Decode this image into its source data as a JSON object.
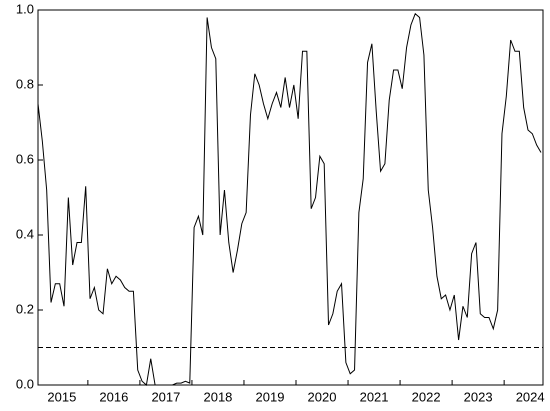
{
  "chart_data": {
    "type": "line",
    "categories": [
      null,
      null,
      null,
      null,
      null,
      null,
      "2015",
      null,
      null,
      null,
      null,
      null,
      null,
      null,
      null,
      null,
      null,
      null,
      "2016",
      null,
      null,
      null,
      null,
      null,
      null,
      null,
      null,
      null,
      null,
      null,
      "2017",
      null,
      null,
      null,
      null,
      null,
      null,
      null,
      null,
      null,
      null,
      null,
      "2018",
      null,
      null,
      null,
      null,
      null,
      null,
      null,
      null,
      null,
      null,
      null,
      "2019",
      null,
      null,
      null,
      null,
      null,
      null,
      null,
      null,
      null,
      null,
      null,
      "2020",
      null,
      null,
      null,
      null,
      null,
      null,
      null,
      null,
      null,
      null,
      null,
      "2021",
      null,
      null,
      null,
      null,
      null,
      null,
      null,
      null,
      null,
      null,
      null,
      "2022",
      null,
      null,
      null,
      null,
      null,
      null,
      null,
      null,
      null,
      null,
      null,
      "2023",
      null,
      null,
      null,
      null,
      null,
      null,
      null,
      null,
      null,
      null,
      null,
      "2024",
      null,
      null
    ],
    "values": [
      0.75,
      0.65,
      0.52,
      0.22,
      0.27,
      0.27,
      0.21,
      0.5,
      0.32,
      0.38,
      0.38,
      0.53,
      0.23,
      0.26,
      0.2,
      0.19,
      0.31,
      0.27,
      0.29,
      0.28,
      0.26,
      0.25,
      0.25,
      0.04,
      0.01,
      0.0,
      0.07,
      0.0,
      0.0,
      0.0,
      0.0,
      0.0,
      0.005,
      0.005,
      0.01,
      0.005,
      0.42,
      0.45,
      0.4,
      0.98,
      0.9,
      0.87,
      0.4,
      0.52,
      0.38,
      0.3,
      0.36,
      0.43,
      0.46,
      0.72,
      0.83,
      0.8,
      0.75,
      0.71,
      0.75,
      0.78,
      0.74,
      0.82,
      0.74,
      0.8,
      0.71,
      0.89,
      0.89,
      0.47,
      0.5,
      0.61,
      0.59,
      0.16,
      0.19,
      0.25,
      0.27,
      0.06,
      0.03,
      0.04,
      0.46,
      0.55,
      0.86,
      0.91,
      0.73,
      0.57,
      0.59,
      0.76,
      0.84,
      0.84,
      0.79,
      0.9,
      0.96,
      0.99,
      0.98,
      0.88,
      0.52,
      0.42,
      0.29,
      0.23,
      0.24,
      0.2,
      0.24,
      0.12,
      0.21,
      0.18,
      0.35,
      0.38,
      0.19,
      0.18,
      0.18,
      0.15,
      0.2,
      0.67,
      0.77,
      0.92,
      0.89,
      0.89,
      0.74,
      0.68,
      0.67,
      0.64,
      0.62
    ],
    "color": "#000000",
    "ylim": [
      0,
      1
    ],
    "yticks": [
      {
        "value": 0,
        "label": "0.0"
      },
      0.2,
      0.4,
      0.6,
      0.8,
      {
        "value": 1,
        "label": "1.0"
      }
    ],
    "hline": 0.1,
    "hline_style": "dashed"
  }
}
